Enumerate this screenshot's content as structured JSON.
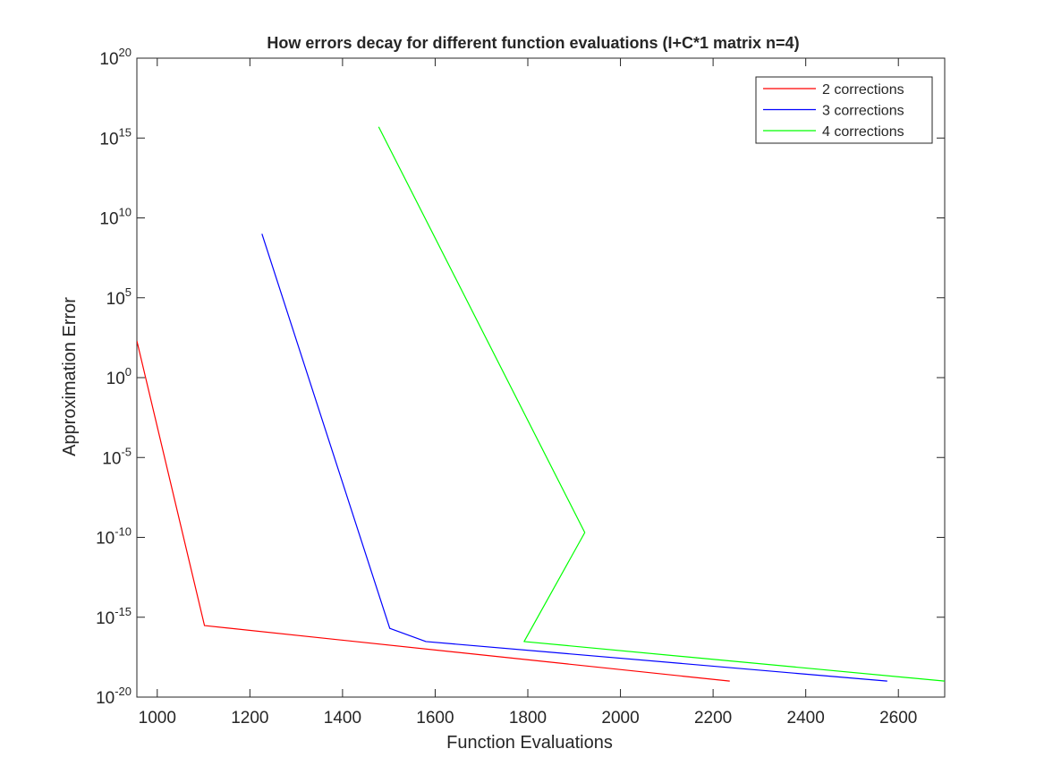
{
  "chart_data": {
    "type": "line",
    "title": "How errors decay for different function evaluations (I+C*1 matrix n=4)",
    "xlabel": "Function Evaluations",
    "ylabel": "Approximation Error",
    "xlim": [
      956,
      2700
    ],
    "ylim_log10": [
      -20,
      20
    ],
    "y_scale": "log",
    "x_ticks": [
      1000,
      1200,
      1400,
      1600,
      1800,
      2000,
      2200,
      2400,
      2600
    ],
    "x_tick_labels": [
      "1000",
      "1200",
      "1400",
      "1600",
      "1800",
      "2000",
      "2200",
      "2400",
      "2600"
    ],
    "y_tick_exponents": [
      -20,
      -15,
      -10,
      -5,
      0,
      5,
      10,
      15,
      20
    ],
    "y_tick_base": "10",
    "legend_position": "top-right",
    "grid": false,
    "series": [
      {
        "name": "2 corrections",
        "color": "#ff0000",
        "x": [
          956,
          1102,
          2236
        ],
        "y": [
          "2e2",
          "3e-16",
          "1e-19"
        ]
      },
      {
        "name": "3 corrections",
        "color": "#0000ff",
        "x": [
          1226,
          1502,
          1580,
          2576
        ],
        "y": [
          "1e9",
          "2e-16",
          "3e-17",
          "1e-19"
        ]
      },
      {
        "name": "4 corrections",
        "color": "#00ff00",
        "x": [
          1478,
          1923,
          1792,
          2700
        ],
        "y": [
          "5e15",
          "2e-10",
          "3e-17",
          "1e-19"
        ]
      }
    ]
  }
}
